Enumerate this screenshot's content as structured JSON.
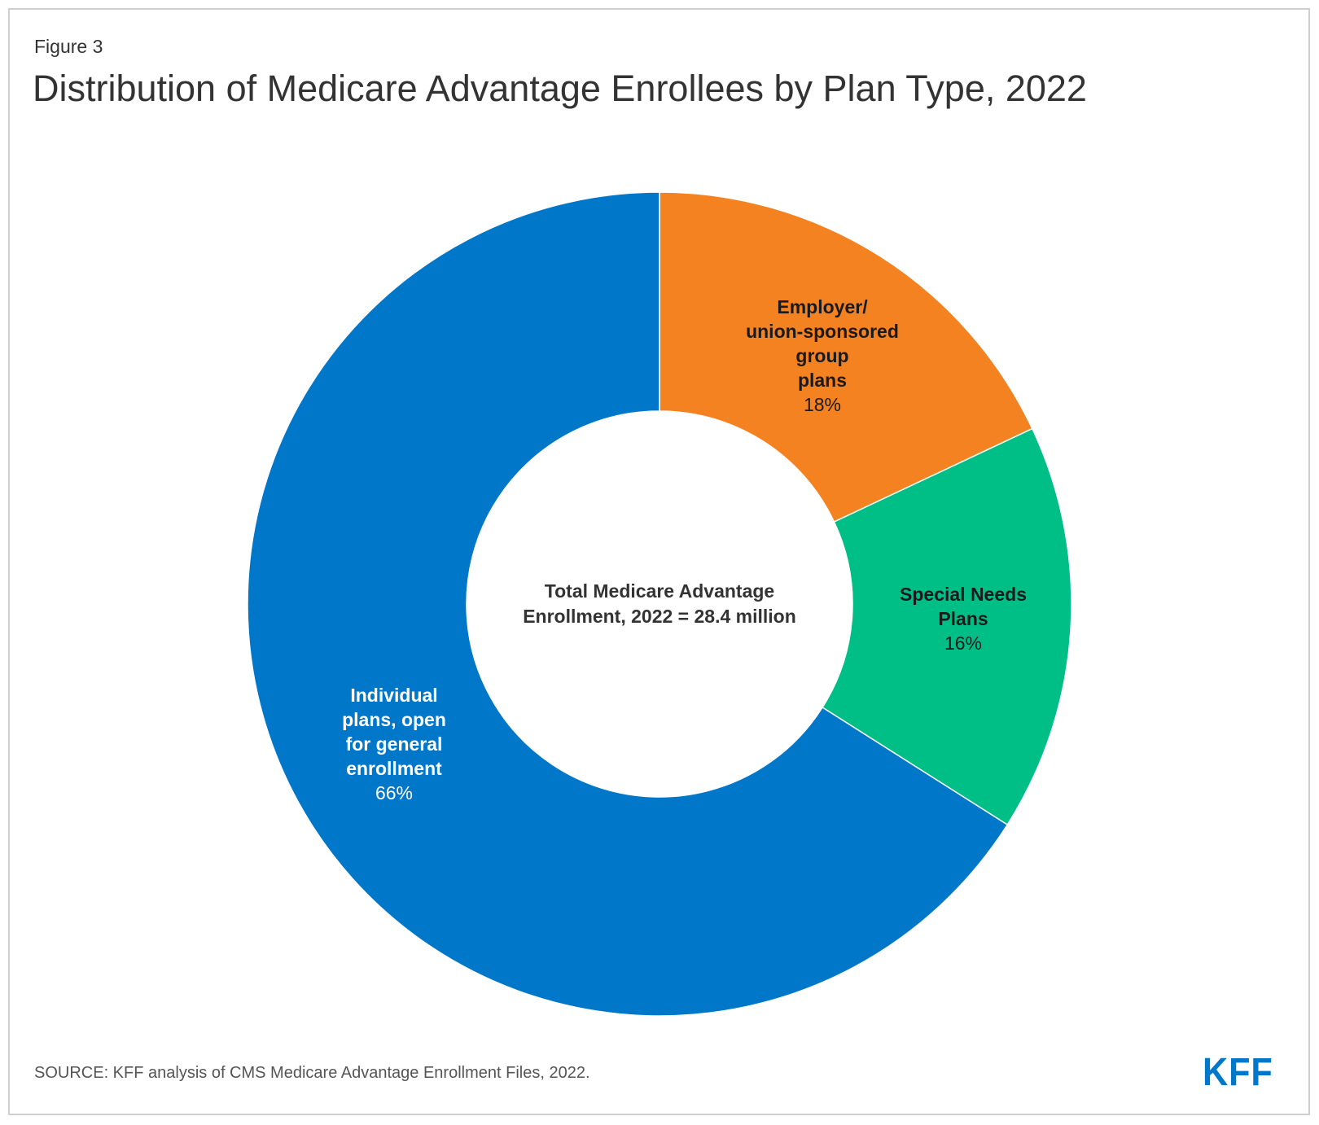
{
  "figure_label": "Figure 3",
  "title": "Distribution of Medicare Advantage Enrollees by Plan Type, 2022",
  "source": "SOURCE: KFF analysis of CMS Medicare Advantage Enrollment Files, 2022.",
  "logo": "KFF",
  "chart_data": {
    "type": "pie",
    "variant": "donut",
    "title": "Distribution of Medicare Advantage Enrollees by Plan Type, 2022",
    "center_label": [
      "Total Medicare Advantage",
      "Enrollment, 2022 = 28.4 million"
    ],
    "slices": [
      {
        "label_lines": [
          "Employer/",
          "union-sponsored",
          "group",
          "plans"
        ],
        "value": 18,
        "value_label": "18%",
        "color": "#f58220",
        "label_color": "#1a1a1a"
      },
      {
        "label_lines": [
          "Special Needs",
          "Plans"
        ],
        "value": 16,
        "value_label": "16%",
        "color": "#00bf86",
        "label_color": "#1a1a1a"
      },
      {
        "label_lines": [
          "Individual",
          "plans, open",
          "for general",
          "enrollment"
        ],
        "value": 66,
        "value_label": "66%",
        "color": "#0077c8",
        "label_color": "#ffffff"
      }
    ]
  }
}
